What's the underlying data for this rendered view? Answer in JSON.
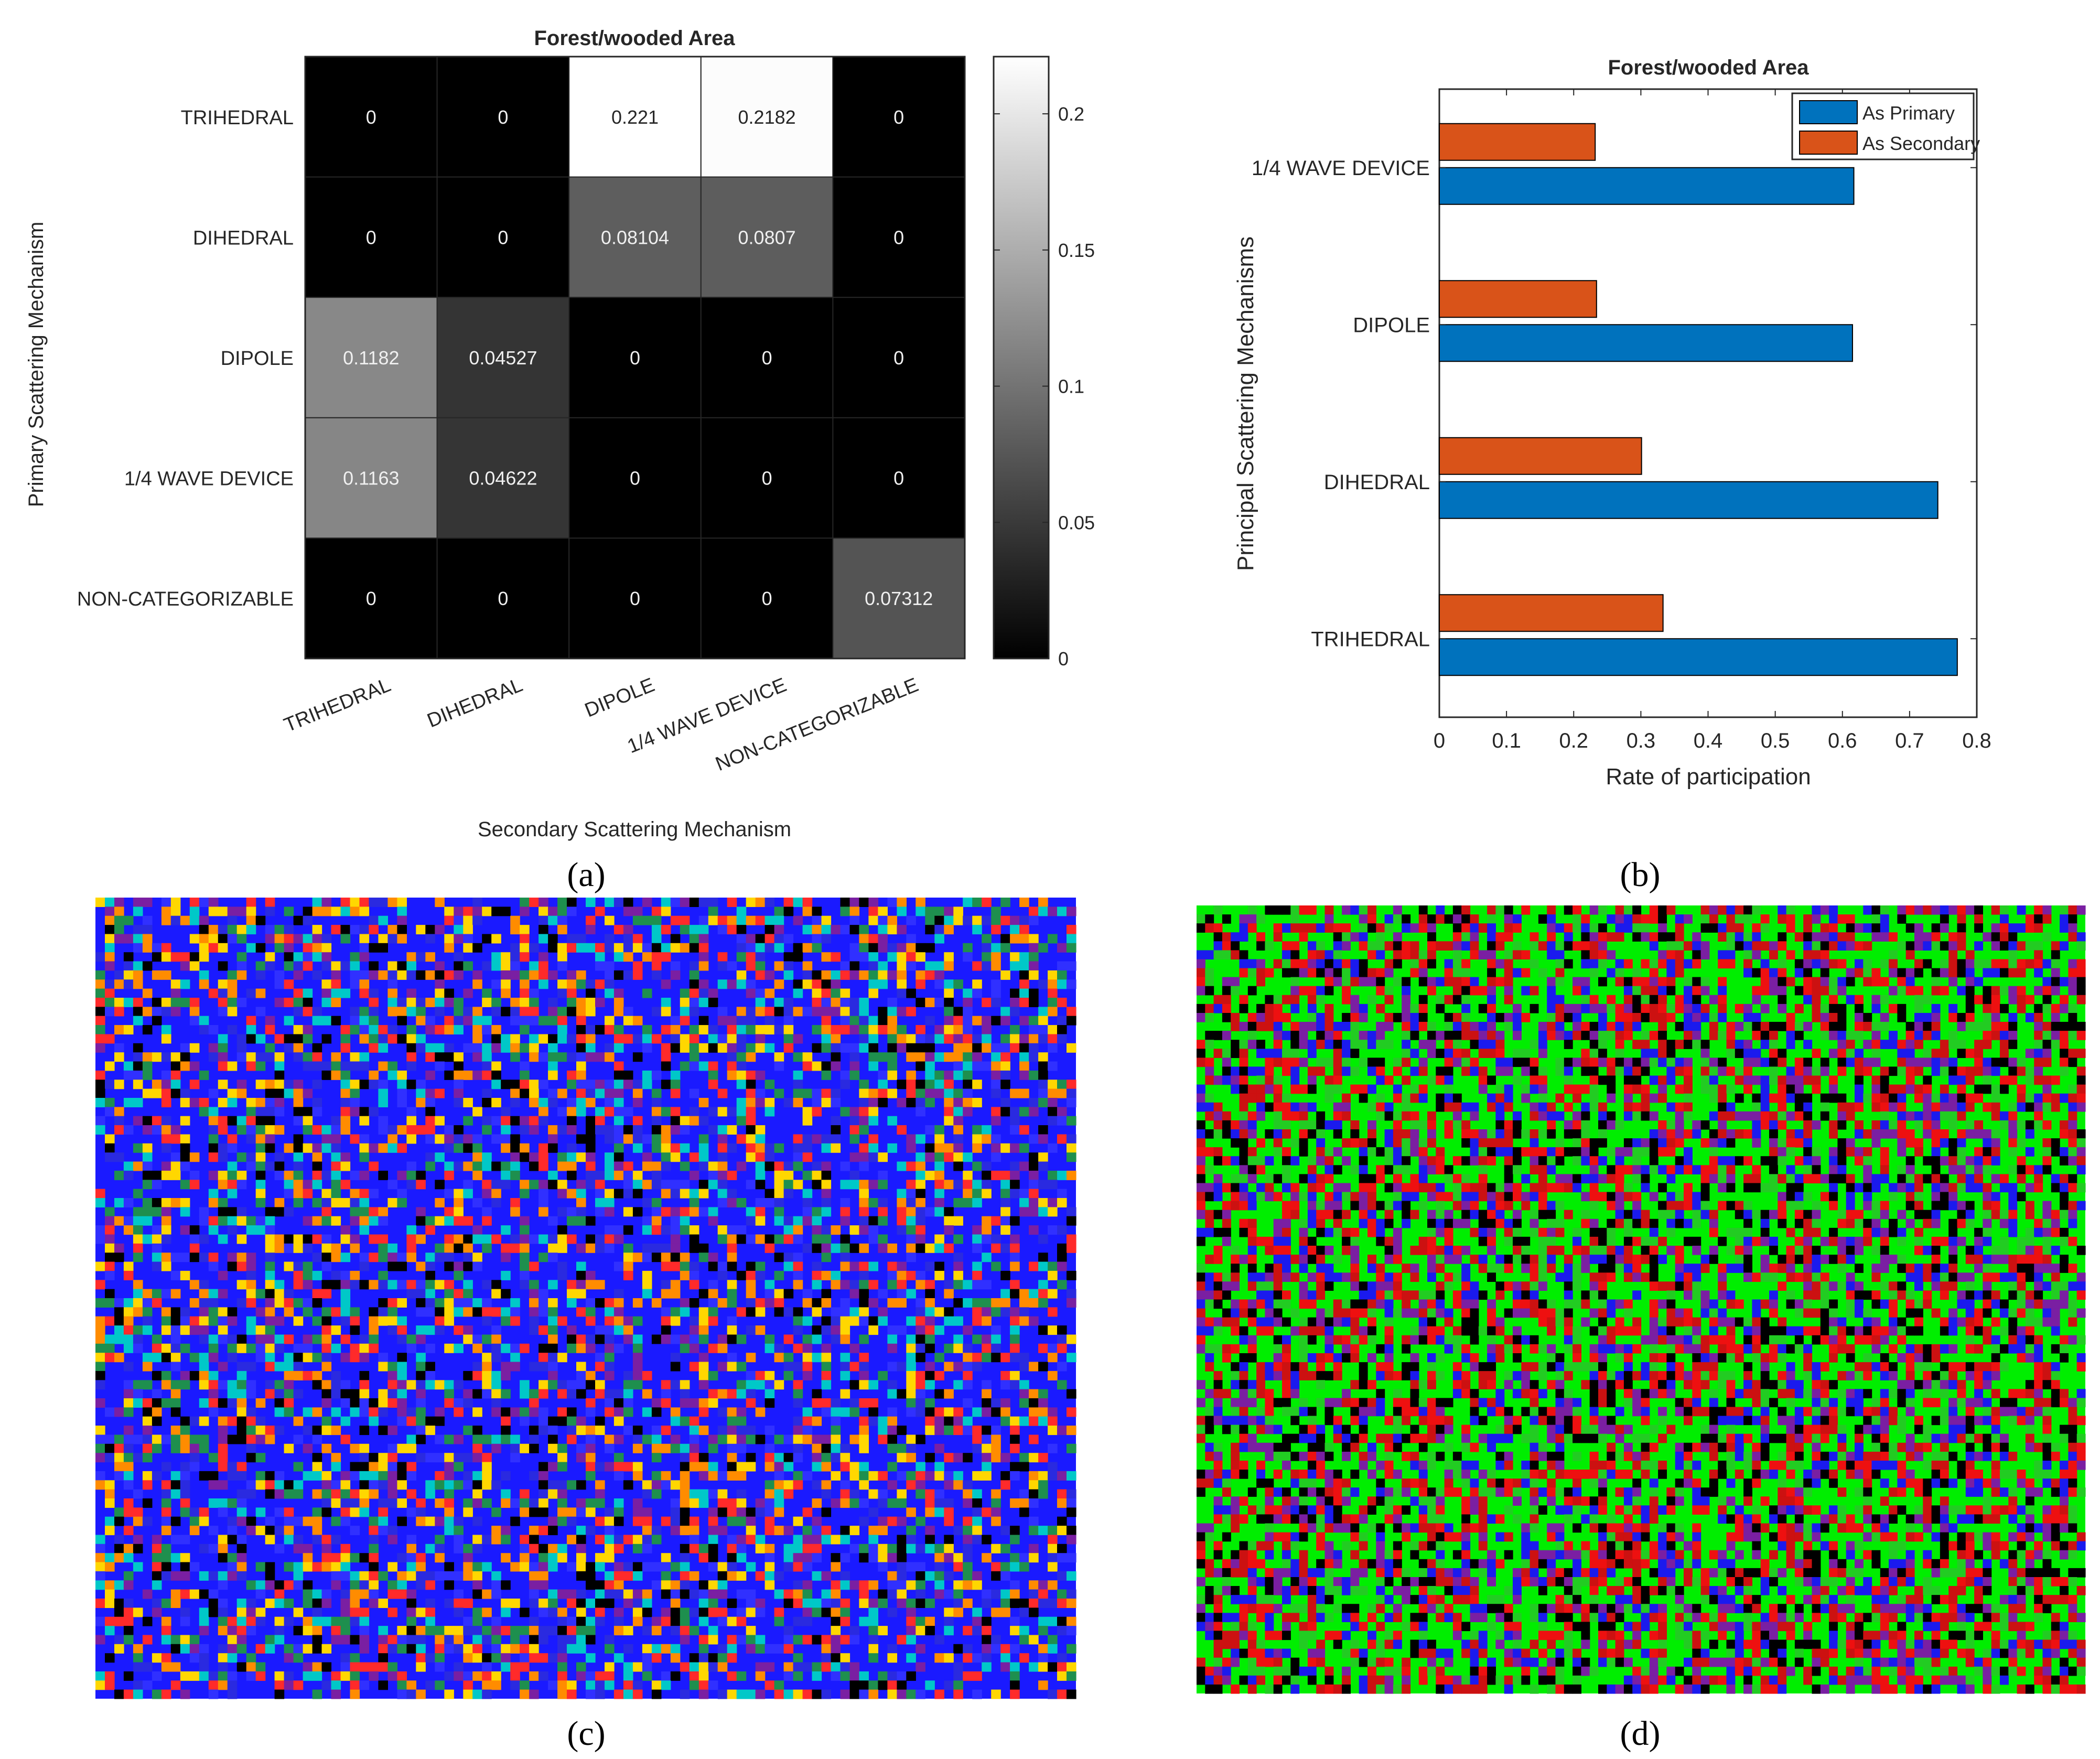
{
  "panel_labels": {
    "a": "(a)",
    "b": "(b)",
    "c": "(c)",
    "d": "(d)"
  },
  "chart_data": [
    {
      "type": "heatmap",
      "title": "Forest/wooded Area",
      "xlabel": "Secondary Scattering Mechanism",
      "ylabel": "Primary Scattering Mechanism",
      "rows": [
        "TRIHEDRAL",
        "DIHEDRAL",
        "DIPOLE",
        "1/4 WAVE DEVICE",
        "NON-CATEGORIZABLE"
      ],
      "columns": [
        "TRIHEDRAL",
        "DIHEDRAL",
        "DIPOLE",
        "1/4 WAVE DEVICE",
        "NON-CATEGORIZABLE"
      ],
      "values": [
        [
          0,
          0,
          0.221,
          0.2182,
          0
        ],
        [
          0,
          0,
          0.08104,
          0.0807,
          0
        ],
        [
          0.1182,
          0.04527,
          0,
          0,
          0
        ],
        [
          0.1163,
          0.04622,
          0,
          0,
          0
        ],
        [
          0,
          0,
          0,
          0,
          0.07312
        ]
      ],
      "labels": [
        [
          "0",
          "0",
          "0.221",
          "0.2182",
          "0"
        ],
        [
          "0",
          "0",
          "0.08104",
          "0.0807",
          "0"
        ],
        [
          "0.1182",
          "0.04527",
          "0",
          "0",
          "0"
        ],
        [
          "0.1163",
          "0.04622",
          "0",
          "0",
          "0"
        ],
        [
          "0",
          "0",
          "0",
          "0",
          "0.07312"
        ]
      ],
      "colorbar": {
        "min": 0,
        "max": 0.221,
        "ticks": [
          "0",
          "0.05",
          "0.1",
          "0.15",
          "0.2"
        ],
        "tick_values": [
          0,
          0.05,
          0.1,
          0.15,
          0.2
        ]
      }
    },
    {
      "type": "bar",
      "orientation": "horizontal",
      "title": "Forest/wooded Area",
      "xlabel": "Rate of participation",
      "ylabel": "Principal Scattering Mechanisms",
      "categories": [
        "TRIHEDRAL",
        "DIHEDRAL",
        "DIPOLE",
        "1/4 WAVE DEVICE"
      ],
      "series": [
        {
          "name": "As Primary",
          "color": "#0072BD",
          "values": [
            0.771,
            0.742,
            0.615,
            0.617
          ]
        },
        {
          "name": "As Secondary",
          "color": "#D95319",
          "values": [
            0.333,
            0.301,
            0.234,
            0.232
          ]
        }
      ],
      "xlim": [
        0,
        0.8
      ],
      "xticks": [
        "0",
        "0.1",
        "0.2",
        "0.3",
        "0.4",
        "0.5",
        "0.6",
        "0.7",
        "0.8"
      ],
      "legend_position": "top-right"
    }
  ],
  "maps": {
    "c": {
      "palette": [
        "#1a1aff",
        "#2a2ae0",
        "#3030ff",
        "#ffd700",
        "#ff8c00",
        "#1e8f4e",
        "#000000",
        "#7a1fa2",
        "#ff2a2a",
        "#00c8c8"
      ]
    },
    "d": {
      "palette": [
        "#00ee00",
        "#ee1010",
        "#1a1aee",
        "#000000",
        "#7a1fa2",
        "#22cc22",
        "#cc1111"
      ]
    }
  }
}
